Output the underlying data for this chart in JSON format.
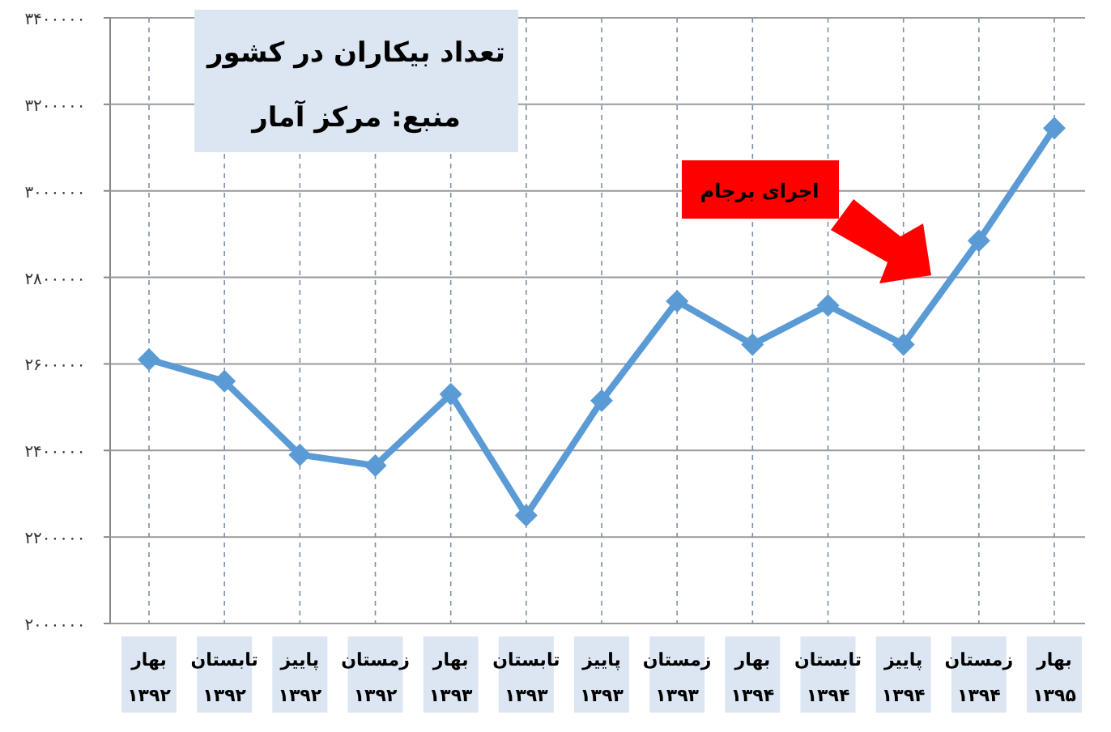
{
  "chart_data": {
    "type": "line",
    "title": "تعداد بیکاران در کشور",
    "subtitle": "منبع: مرکز آمار",
    "annotations": [
      "اجرای برجام"
    ],
    "categories": [
      "بهار ۱۳۹۲",
      "تابستان ۱۳۹۲",
      "پاییز ۱۳۹۲",
      "زمستان ۱۳۹۲",
      "بهار ۱۳۹۳",
      "تابستان ۱۳۹۳",
      "پاییز ۱۳۹۳",
      "زمستان ۱۳۹۳",
      "بهار ۱۳۹۴",
      "تابستان ۱۳۹۴",
      "پاییز ۱۳۹۴",
      "زمستان ۱۳۹۴",
      "بهار ۱۳۹۵"
    ],
    "series": [
      {
        "color": "#5b9bd5",
        "values": [
          2610000,
          2560000,
          2390000,
          2365000,
          2530000,
          2250000,
          2515000,
          2745000,
          2645000,
          2735000,
          2645000,
          2885000,
          3145000
        ]
      }
    ],
    "ylim": [
      2000000,
      3400000
    ],
    "yticks": [
      {
        "value": 2000000,
        "label": "۲۰۰۰۰۰۰"
      },
      {
        "value": 2200000,
        "label": "۲۲۰۰۰۰۰"
      },
      {
        "value": 2400000,
        "label": "۲۴۰۰۰۰۰"
      },
      {
        "value": 2600000,
        "label": "۲۶۰۰۰۰۰"
      },
      {
        "value": 2800000,
        "label": "۲۸۰۰۰۰۰"
      },
      {
        "value": 3000000,
        "label": "۳۰۰۰۰۰۰"
      },
      {
        "value": 3200000,
        "label": "۳۲۰۰۰۰۰"
      },
      {
        "value": 3400000,
        "label": "۳۴۰۰۰۰۰"
      }
    ],
    "grid": true,
    "marker": "diamond",
    "line_style": "solid"
  }
}
